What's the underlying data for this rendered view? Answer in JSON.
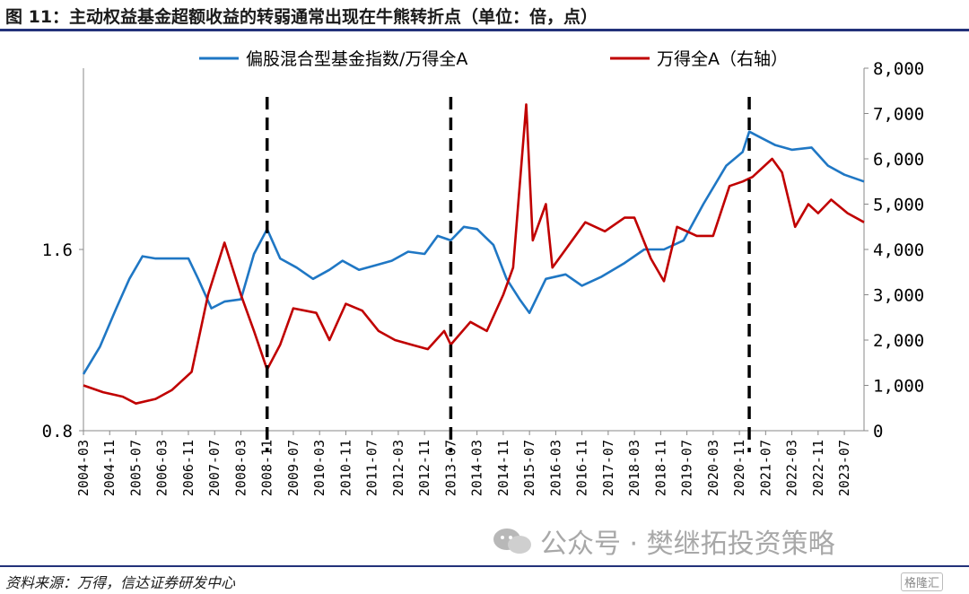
{
  "title": "图 11：主动权益基金超额收益的转弱通常出现在牛熊转折点（单位：倍，点）",
  "source": "资料来源：万得，信达证券研发中心",
  "watermark": "公众号 · 樊继拓投资策略",
  "logo": "格隆汇",
  "colors": {
    "blue": "#1f77c4",
    "red": "#c00000",
    "rule": "#23327a"
  },
  "chart_data": {
    "type": "line",
    "left_axis": {
      "ylim": [
        0.8,
        2.4
      ],
      "ticks": [
        "0.8",
        "1.6"
      ],
      "tick_values": [
        0.8,
        1.6
      ]
    },
    "right_axis": {
      "ylim": [
        0,
        8000
      ],
      "ticks": [
        "0",
        "1,000",
        "2,000",
        "3,000",
        "4,000",
        "5,000",
        "6,000",
        "7,000",
        "8,000"
      ],
      "tick_values": [
        0,
        1000,
        2000,
        3000,
        4000,
        5000,
        6000,
        7000,
        8000
      ]
    },
    "x_ticks": [
      "2004-03",
      "2004-11",
      "2005-07",
      "2006-03",
      "2006-11",
      "2007-07",
      "2008-03",
      "2008-11",
      "2009-07",
      "2010-03",
      "2010-11",
      "2011-07",
      "2012-03",
      "2012-11",
      "2013-07",
      "2014-03",
      "2014-11",
      "2015-07",
      "2016-03",
      "2016-11",
      "2017-07",
      "2018-03",
      "2018-11",
      "2019-07",
      "2020-03",
      "2020-11",
      "2021-07",
      "2022-03",
      "2022-11",
      "2023-07"
    ],
    "x_range": [
      "2004-03",
      "2024-01"
    ],
    "legend": [
      "偏股混合型基金指数/万得全A",
      "万得全A（右轴）"
    ],
    "vlines": [
      "2008-11",
      "2013-07",
      "2021-02"
    ],
    "series": [
      {
        "name": "偏股混合型基金指数/万得全A",
        "axis": "left",
        "color": "#1f77c4",
        "points": [
          [
            "2004-03",
            1.05
          ],
          [
            "2004-08",
            1.17
          ],
          [
            "2005-01",
            1.34
          ],
          [
            "2005-05",
            1.47
          ],
          [
            "2005-09",
            1.57
          ],
          [
            "2006-01",
            1.56
          ],
          [
            "2006-06",
            1.56
          ],
          [
            "2006-11",
            1.56
          ],
          [
            "2007-02",
            1.47
          ],
          [
            "2007-06",
            1.34
          ],
          [
            "2007-10",
            1.37
          ],
          [
            "2008-03",
            1.38
          ],
          [
            "2008-07",
            1.58
          ],
          [
            "2008-11",
            1.69
          ],
          [
            "2009-03",
            1.56
          ],
          [
            "2009-08",
            1.52
          ],
          [
            "2010-01",
            1.47
          ],
          [
            "2010-06",
            1.51
          ],
          [
            "2010-10",
            1.55
          ],
          [
            "2011-03",
            1.51
          ],
          [
            "2011-08",
            1.53
          ],
          [
            "2012-01",
            1.55
          ],
          [
            "2012-06",
            1.59
          ],
          [
            "2012-11",
            1.58
          ],
          [
            "2013-03",
            1.66
          ],
          [
            "2013-07",
            1.64
          ],
          [
            "2013-11",
            1.7
          ],
          [
            "2014-03",
            1.69
          ],
          [
            "2014-08",
            1.62
          ],
          [
            "2014-12",
            1.47
          ],
          [
            "2015-04",
            1.38
          ],
          [
            "2015-07",
            1.32
          ],
          [
            "2015-12",
            1.47
          ],
          [
            "2016-06",
            1.49
          ],
          [
            "2016-11",
            1.44
          ],
          [
            "2017-05",
            1.48
          ],
          [
            "2017-12",
            1.54
          ],
          [
            "2018-06",
            1.6
          ],
          [
            "2018-12",
            1.6
          ],
          [
            "2019-06",
            1.64
          ],
          [
            "2019-12",
            1.8
          ],
          [
            "2020-07",
            1.97
          ],
          [
            "2020-12",
            2.03
          ],
          [
            "2021-02",
            2.12
          ],
          [
            "2021-06",
            2.09
          ],
          [
            "2021-10",
            2.06
          ],
          [
            "2022-03",
            2.04
          ],
          [
            "2022-09",
            2.05
          ],
          [
            "2023-02",
            1.97
          ],
          [
            "2023-07",
            1.93
          ],
          [
            "2024-01",
            1.9
          ]
        ]
      },
      {
        "name": "万得全A（右轴）",
        "axis": "right",
        "color": "#c00000",
        "points": [
          [
            "2004-03",
            1000
          ],
          [
            "2004-09",
            850
          ],
          [
            "2005-03",
            750
          ],
          [
            "2005-07",
            600
          ],
          [
            "2006-01",
            700
          ],
          [
            "2006-06",
            900
          ],
          [
            "2006-12",
            1300
          ],
          [
            "2007-05",
            3000
          ],
          [
            "2007-10",
            4150
          ],
          [
            "2008-03",
            3000
          ],
          [
            "2008-07",
            2200
          ],
          [
            "2008-11",
            1350
          ],
          [
            "2009-03",
            1900
          ],
          [
            "2009-07",
            2700
          ],
          [
            "2010-02",
            2600
          ],
          [
            "2010-06",
            2000
          ],
          [
            "2010-11",
            2800
          ],
          [
            "2011-04",
            2650
          ],
          [
            "2011-09",
            2200
          ],
          [
            "2012-02",
            2000
          ],
          [
            "2012-07",
            1900
          ],
          [
            "2012-12",
            1800
          ],
          [
            "2013-05",
            2200
          ],
          [
            "2013-07",
            1900
          ],
          [
            "2014-01",
            2400
          ],
          [
            "2014-06",
            2200
          ],
          [
            "2014-11",
            3000
          ],
          [
            "2015-02",
            3600
          ],
          [
            "2015-06",
            7200
          ],
          [
            "2015-08",
            4200
          ],
          [
            "2015-12",
            5000
          ],
          [
            "2016-02",
            3600
          ],
          [
            "2016-06",
            4000
          ],
          [
            "2016-12",
            4600
          ],
          [
            "2017-06",
            4400
          ],
          [
            "2017-12",
            4700
          ],
          [
            "2018-03",
            4700
          ],
          [
            "2018-08",
            3800
          ],
          [
            "2018-12",
            3300
          ],
          [
            "2019-04",
            4500
          ],
          [
            "2019-10",
            4300
          ],
          [
            "2020-03",
            4300
          ],
          [
            "2020-08",
            5400
          ],
          [
            "2020-12",
            5500
          ],
          [
            "2021-03",
            5600
          ],
          [
            "2021-09",
            6000
          ],
          [
            "2021-12",
            5700
          ],
          [
            "2022-04",
            4500
          ],
          [
            "2022-08",
            5000
          ],
          [
            "2022-11",
            4800
          ],
          [
            "2023-03",
            5100
          ],
          [
            "2023-08",
            4800
          ],
          [
            "2024-01",
            4600
          ]
        ]
      }
    ]
  }
}
